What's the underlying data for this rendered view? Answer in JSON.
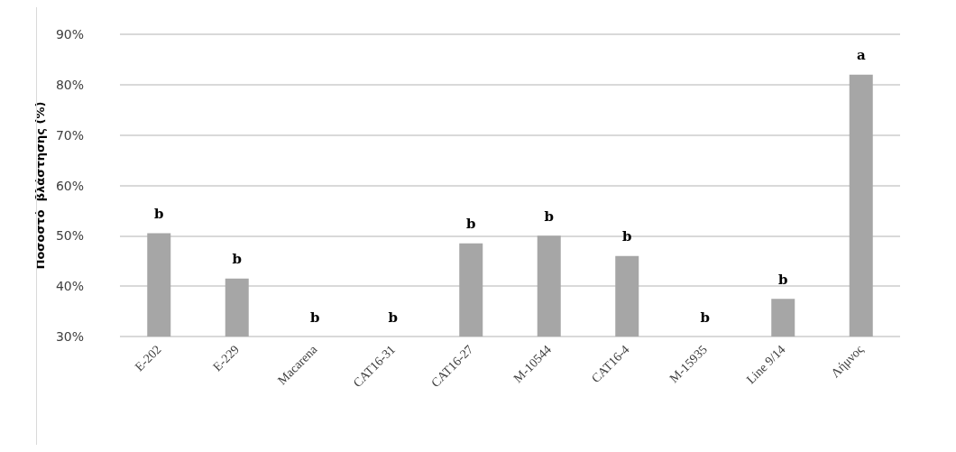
{
  "chart_data": {
    "type": "bar",
    "ylabel": "Ποσοστό  βλάστησης (%)",
    "categories": [
      "E-202",
      "E-229",
      "Macarena",
      "CAT16-31",
      "CAT16-27",
      "M-10544",
      "CAT16-4",
      "M-15935",
      "Line 9/14",
      "Λήμνος"
    ],
    "values": [
      50.5,
      41.5,
      30,
      30,
      48.5,
      50,
      46,
      30,
      37.5,
      82
    ],
    "value_labels": [
      "b",
      "b",
      "b",
      "b",
      "b",
      "b",
      "b",
      "b",
      "b",
      "a"
    ],
    "color": "#a6a6a6",
    "ylim": [
      30,
      90
    ],
    "yticks": [
      {
        "value": 30,
        "label": "30%"
      },
      {
        "value": 40,
        "label": "40%"
      },
      {
        "value": 50,
        "label": "50%"
      },
      {
        "value": 60,
        "label": "60%"
      },
      {
        "value": 70,
        "label": "70%"
      },
      {
        "value": 80,
        "label": "80%"
      },
      {
        "value": 90,
        "label": "90%"
      }
    ],
    "grid": "y"
  }
}
